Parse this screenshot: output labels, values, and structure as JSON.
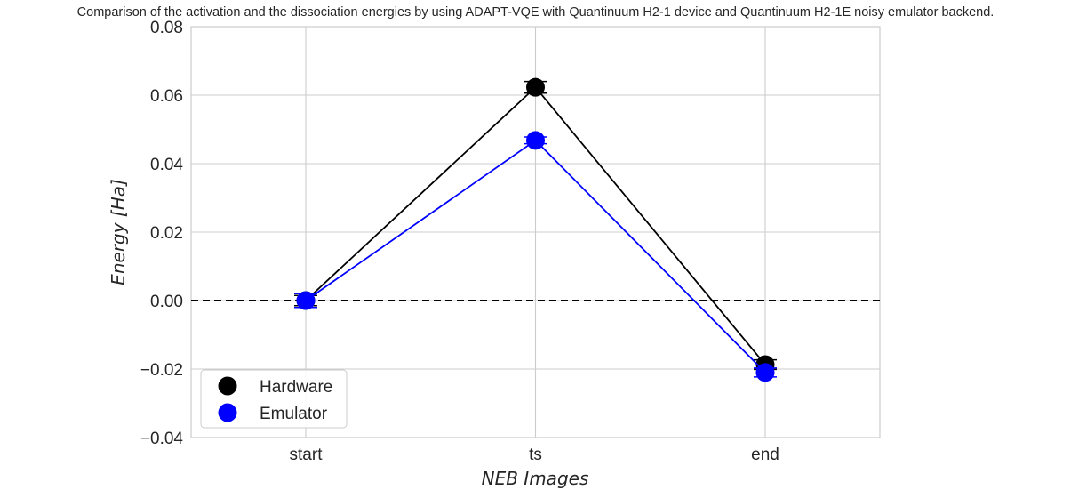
{
  "chart_data": {
    "type": "line",
    "title": "Comparison of the activation and the dissociation energies by using ADAPT-VQE with Quantinuum H2-1 device and Quantinuum H2-1E noisy emulator backend.",
    "xlabel": "NEB Images",
    "ylabel": "Energy [Ha]",
    "categories": [
      "start",
      "ts",
      "end"
    ],
    "ylim": [
      -0.04,
      0.08
    ],
    "yticks": [
      -0.04,
      -0.02,
      0.0,
      0.02,
      0.04,
      0.06,
      0.08
    ],
    "ytick_labels": [
      "−0.04",
      "−0.02",
      "0.00",
      "0.02",
      "0.04",
      "0.06",
      "0.08"
    ],
    "grid": true,
    "reference_line": {
      "y": 0.0,
      "style": "dashed",
      "color": "#000000"
    },
    "legend_position": "lower left",
    "series": [
      {
        "name": "Hardware",
        "color": "#000000",
        "values": [
          0.0,
          0.0623,
          -0.0187
        ],
        "errors": [
          0.0015,
          0.0017,
          0.0014
        ]
      },
      {
        "name": "Emulator",
        "color": "#0000ff",
        "values": [
          0.0,
          0.0468,
          -0.021
        ],
        "errors": [
          0.002,
          0.001,
          0.0013
        ]
      }
    ]
  },
  "legend": {
    "items": [
      {
        "label": "Hardware",
        "color": "#000000"
      },
      {
        "label": "Emulator",
        "color": "#0000ff"
      }
    ]
  }
}
